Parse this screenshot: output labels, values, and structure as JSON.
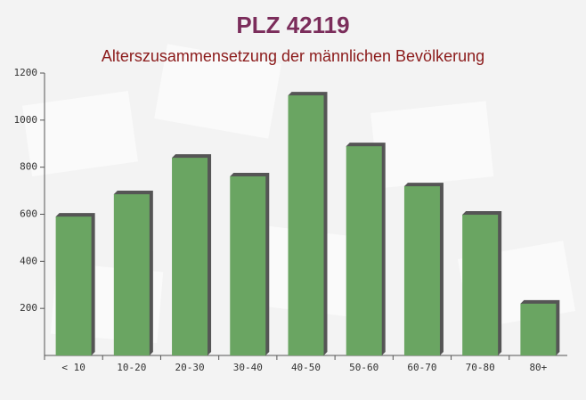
{
  "chart_data": {
    "type": "bar",
    "title": "PLZ 42119",
    "subtitle": "Alterszusammensetzung der männlichen Bevölkerung",
    "categories": [
      "< 10",
      "10-20",
      "20-30",
      "30-40",
      "40-50",
      "50-60",
      "60-70",
      "70-80",
      "80+"
    ],
    "values": [
      590,
      685,
      840,
      761,
      1105,
      889,
      719,
      598,
      220
    ],
    "color": "#6aa562",
    "ylim": [
      0,
      1200
    ],
    "yticks": [
      200,
      400,
      600,
      800,
      1000,
      1200
    ]
  }
}
